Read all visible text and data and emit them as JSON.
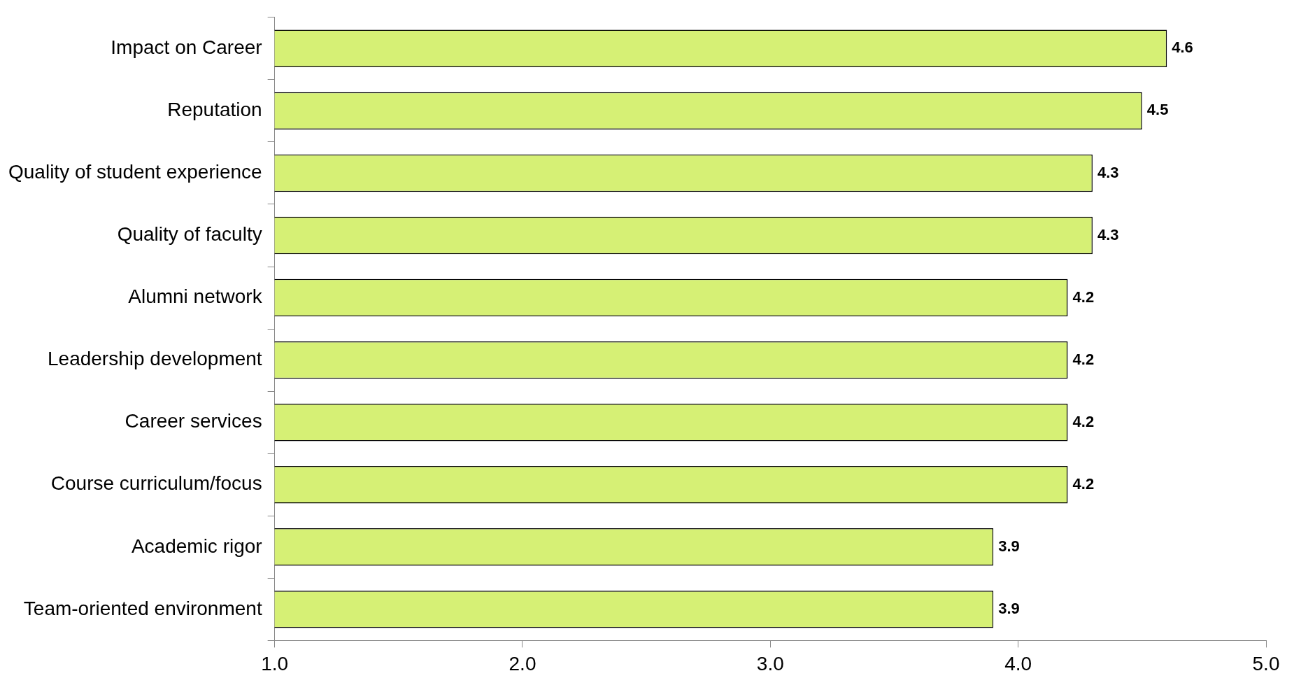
{
  "chart_data": {
    "type": "bar",
    "orientation": "horizontal",
    "categories": [
      "Impact on Career",
      "Reputation",
      "Quality of student experience",
      "Quality of faculty",
      "Alumni network",
      "Leadership development",
      "Career services",
      "Course curriculum/focus",
      "Academic rigor",
      "Team-oriented environment"
    ],
    "values": [
      4.6,
      4.5,
      4.3,
      4.3,
      4.2,
      4.2,
      4.2,
      4.2,
      3.9,
      3.9
    ],
    "color": "#d6f075",
    "xlim": [
      1,
      5
    ],
    "xticks": [
      {
        "value": 1,
        "label": "1.0"
      },
      {
        "value": 2,
        "label": "2.0"
      },
      {
        "value": 3,
        "label": "3.0"
      },
      {
        "value": 4,
        "label": "4.0"
      },
      {
        "value": 5,
        "label": "5.0"
      }
    ],
    "data_labels": true
  }
}
